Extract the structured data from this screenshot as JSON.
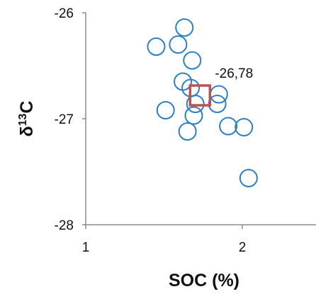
{
  "colors": {
    "series": "#2f7fc8",
    "highlight": "#c0504d",
    "axis": "#8c8c8c",
    "text": "#111111"
  },
  "chart_data": {
    "type": "scatter",
    "xlabel": "SOC (%)",
    "ylabel_parts": {
      "base": "δ",
      "sup": "13",
      "tail": "C"
    },
    "xlim": [
      1,
      2.5
    ],
    "ylim": [
      -28,
      -26
    ],
    "xticks": [
      1,
      2
    ],
    "xtick_labels": [
      "1",
      "2"
    ],
    "yticks": [
      -26,
      -27,
      -28
    ],
    "ytick_labels": [
      "-26",
      "-27",
      "-28"
    ],
    "grid": false,
    "series": [
      {
        "marker": "circle",
        "points": [
          {
            "x": 1.63,
            "y": -26.14
          },
          {
            "x": 1.45,
            "y": -26.32
          },
          {
            "x": 1.59,
            "y": -26.3
          },
          {
            "x": 1.68,
            "y": -26.45
          },
          {
            "x": 1.62,
            "y": -26.65
          },
          {
            "x": 1.67,
            "y": -26.71
          },
          {
            "x": 1.85,
            "y": -26.77
          },
          {
            "x": 1.7,
            "y": -26.86
          },
          {
            "x": 1.84,
            "y": -26.86
          },
          {
            "x": 1.51,
            "y": -26.92
          },
          {
            "x": 1.69,
            "y": -26.97
          },
          {
            "x": 1.91,
            "y": -27.07
          },
          {
            "x": 2.01,
            "y": -27.08
          },
          {
            "x": 1.65,
            "y": -27.12
          },
          {
            "x": 2.04,
            "y": -27.56
          }
        ]
      },
      {
        "marker": "square",
        "points": [
          {
            "x": 1.73,
            "y": -26.78
          }
        ]
      }
    ],
    "annotations": [
      {
        "text": "-26,78",
        "x": 1.73,
        "y": -26.78
      }
    ]
  }
}
